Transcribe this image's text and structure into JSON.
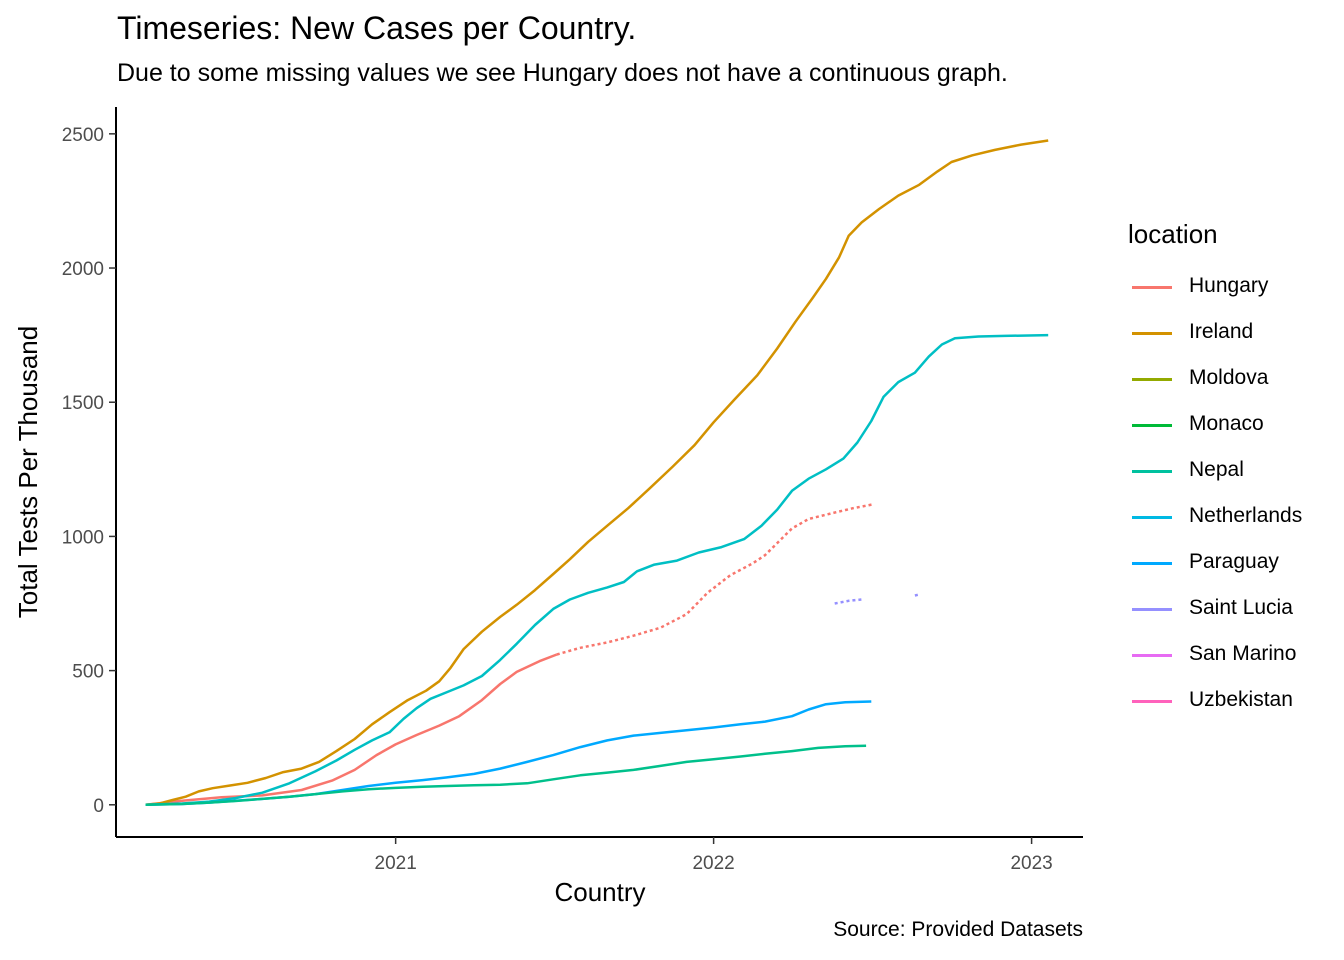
{
  "chart_data": {
    "type": "line",
    "title": "Timeseries: New Cases per Country.",
    "subtitle": "Due to some missing values we see Hungary does not have a continuous graph.",
    "caption": "Source: Provided Datasets",
    "xlabel": "Country",
    "ylabel": "Total Tests Per Thousand",
    "x_ticks": [
      "2021",
      "2022",
      "2023"
    ],
    "y_ticks": [
      0,
      500,
      1000,
      1500,
      2000,
      2500
    ],
    "xlim": [
      "2020-02-15",
      "2023-03-01"
    ],
    "ylim": [
      -120,
      2600
    ],
    "grid": false,
    "legend_title": "location",
    "legend_position": "right",
    "series": [
      {
        "name": "Hungary",
        "color": "#F8766D",
        "points": [
          [
            "2020-03-20",
            0
          ],
          [
            "2020-05-01",
            15
          ],
          [
            "2020-06-15",
            28
          ],
          [
            "2020-08-01",
            35
          ],
          [
            "2020-09-15",
            55
          ],
          [
            "2020-10-20",
            90
          ],
          [
            "2020-11-15",
            130
          ],
          [
            "2020-12-10",
            185
          ],
          [
            "2021-01-01",
            225
          ],
          [
            "2021-01-25",
            260
          ],
          [
            "2021-02-20",
            295
          ],
          [
            "2021-03-15",
            330
          ],
          [
            "2021-04-10",
            390
          ],
          [
            "2021-05-01",
            450
          ],
          [
            "2021-05-20",
            495
          ],
          [
            "2021-06-15",
            535
          ],
          [
            "2021-07-05",
            560
          ]
        ]
      },
      {
        "name": "Hungary",
        "color": "#F8766D",
        "dashed": true,
        "points": [
          [
            "2021-07-05",
            560
          ],
          [
            "2021-08-01",
            585
          ],
          [
            "2021-09-01",
            605
          ],
          [
            "2021-10-01",
            630
          ],
          [
            "2021-11-01",
            660
          ],
          [
            "2021-12-01",
            710
          ],
          [
            "2021-12-25",
            790
          ],
          [
            "2022-01-20",
            855
          ],
          [
            "2022-02-15",
            900
          ],
          [
            "2022-03-01",
            930
          ],
          [
            "2022-03-15",
            975
          ],
          [
            "2022-04-01",
            1030
          ],
          [
            "2022-04-20",
            1065
          ],
          [
            "2022-05-15",
            1085
          ],
          [
            "2022-06-10",
            1105
          ],
          [
            "2022-07-04",
            1120
          ]
        ]
      },
      {
        "name": "Ireland",
        "color": "#D39200",
        "points": [
          [
            "2020-03-20",
            0
          ],
          [
            "2020-04-05",
            5
          ],
          [
            "2020-04-20",
            18
          ],
          [
            "2020-05-05",
            30
          ],
          [
            "2020-05-20",
            50
          ],
          [
            "2020-06-05",
            62
          ],
          [
            "2020-06-25",
            72
          ],
          [
            "2020-07-15",
            82
          ],
          [
            "2020-08-05",
            100
          ],
          [
            "2020-08-25",
            122
          ],
          [
            "2020-09-15",
            135
          ],
          [
            "2020-10-05",
            160
          ],
          [
            "2020-10-25",
            200
          ],
          [
            "2020-11-15",
            245
          ],
          [
            "2020-12-05",
            300
          ],
          [
            "2020-12-25",
            345
          ],
          [
            "2021-01-15",
            390
          ],
          [
            "2021-02-05",
            425
          ],
          [
            "2021-02-20",
            460
          ],
          [
            "2021-03-05",
            510
          ],
          [
            "2021-03-20",
            580
          ],
          [
            "2021-04-10",
            645
          ],
          [
            "2021-05-01",
            700
          ],
          [
            "2021-05-20",
            745
          ],
          [
            "2021-06-10",
            800
          ],
          [
            "2021-07-01",
            860
          ],
          [
            "2021-07-20",
            915
          ],
          [
            "2021-08-10",
            980
          ],
          [
            "2021-09-01",
            1040
          ],
          [
            "2021-09-25",
            1105
          ],
          [
            "2021-10-20",
            1180
          ],
          [
            "2021-11-15",
            1260
          ],
          [
            "2021-12-10",
            1340
          ],
          [
            "2022-01-01",
            1425
          ],
          [
            "2022-01-25",
            1510
          ],
          [
            "2022-02-20",
            1600
          ],
          [
            "2022-03-15",
            1700
          ],
          [
            "2022-04-05",
            1800
          ],
          [
            "2022-04-25",
            1890
          ],
          [
            "2022-05-10",
            1960
          ],
          [
            "2022-05-25",
            2040
          ],
          [
            "2022-06-05",
            2120
          ],
          [
            "2022-06-20",
            2170
          ],
          [
            "2022-07-10",
            2220
          ],
          [
            "2022-08-01",
            2270
          ],
          [
            "2022-08-25",
            2310
          ],
          [
            "2022-09-15",
            2360
          ],
          [
            "2022-10-01",
            2395
          ],
          [
            "2022-10-25",
            2420
          ],
          [
            "2022-11-20",
            2440
          ],
          [
            "2022-12-20",
            2460
          ],
          [
            "2023-01-20",
            2475
          ]
        ]
      },
      {
        "name": "Netherlands",
        "color": "#00BFC4",
        "points": [
          [
            "2020-03-20",
            0
          ],
          [
            "2020-05-01",
            5
          ],
          [
            "2020-06-01",
            12
          ],
          [
            "2020-07-01",
            25
          ],
          [
            "2020-08-01",
            45
          ],
          [
            "2020-09-01",
            80
          ],
          [
            "2020-10-01",
            125
          ],
          [
            "2020-10-25",
            165
          ],
          [
            "2020-11-15",
            205
          ],
          [
            "2020-12-05",
            240
          ],
          [
            "2020-12-25",
            270
          ],
          [
            "2021-01-10",
            320
          ],
          [
            "2021-01-25",
            360
          ],
          [
            "2021-02-10",
            395
          ],
          [
            "2021-03-01",
            420
          ],
          [
            "2021-03-20",
            445
          ],
          [
            "2021-04-10",
            480
          ],
          [
            "2021-05-01",
            540
          ],
          [
            "2021-05-20",
            600
          ],
          [
            "2021-06-10",
            670
          ],
          [
            "2021-07-01",
            730
          ],
          [
            "2021-07-20",
            765
          ],
          [
            "2021-08-10",
            790
          ],
          [
            "2021-09-01",
            810
          ],
          [
            "2021-09-20",
            830
          ],
          [
            "2021-10-05",
            870
          ],
          [
            "2021-10-25",
            895
          ],
          [
            "2021-11-20",
            910
          ],
          [
            "2021-12-15",
            940
          ],
          [
            "2022-01-10",
            960
          ],
          [
            "2022-02-05",
            990
          ],
          [
            "2022-02-25",
            1040
          ],
          [
            "2022-03-15",
            1100
          ],
          [
            "2022-04-01",
            1170
          ],
          [
            "2022-04-20",
            1215
          ],
          [
            "2022-05-10",
            1250
          ],
          [
            "2022-05-30",
            1290
          ],
          [
            "2022-06-15",
            1350
          ],
          [
            "2022-07-01",
            1430
          ],
          [
            "2022-07-15",
            1520
          ],
          [
            "2022-08-01",
            1575
          ],
          [
            "2022-08-20",
            1610
          ],
          [
            "2022-09-05",
            1670
          ],
          [
            "2022-09-20",
            1715
          ],
          [
            "2022-10-05",
            1738
          ],
          [
            "2022-11-01",
            1745
          ],
          [
            "2022-12-01",
            1747
          ],
          [
            "2023-01-20",
            1750
          ]
        ]
      },
      {
        "name": "Paraguay",
        "color": "#00A9FF",
        "points": [
          [
            "2020-03-20",
            0
          ],
          [
            "2020-05-01",
            3
          ],
          [
            "2020-06-01",
            8
          ],
          [
            "2020-07-01",
            15
          ],
          [
            "2020-08-01",
            22
          ],
          [
            "2020-09-01",
            30
          ],
          [
            "2020-10-01",
            40
          ],
          [
            "2020-11-01",
            55
          ],
          [
            "2020-12-01",
            70
          ],
          [
            "2021-01-01",
            82
          ],
          [
            "2021-02-01",
            92
          ],
          [
            "2021-03-01",
            102
          ],
          [
            "2021-04-01",
            115
          ],
          [
            "2021-05-01",
            135
          ],
          [
            "2021-06-01",
            160
          ],
          [
            "2021-07-01",
            185
          ],
          [
            "2021-08-01",
            215
          ],
          [
            "2021-09-01",
            240
          ],
          [
            "2021-10-01",
            258
          ],
          [
            "2021-11-01",
            268
          ],
          [
            "2021-12-01",
            278
          ],
          [
            "2022-01-01",
            288
          ],
          [
            "2022-02-01",
            300
          ],
          [
            "2022-03-01",
            310
          ],
          [
            "2022-04-01",
            330
          ],
          [
            "2022-04-20",
            355
          ],
          [
            "2022-05-10",
            375
          ],
          [
            "2022-06-01",
            382
          ],
          [
            "2022-07-01",
            385
          ]
        ]
      },
      {
        "name": "Nepal",
        "color": "#00C08B",
        "points": [
          [
            "2020-03-20",
            0
          ],
          [
            "2020-05-01",
            3
          ],
          [
            "2020-06-01",
            8
          ],
          [
            "2020-07-01",
            14
          ],
          [
            "2020-08-01",
            22
          ],
          [
            "2020-09-01",
            30
          ],
          [
            "2020-10-01",
            40
          ],
          [
            "2020-11-01",
            50
          ],
          [
            "2020-12-01",
            58
          ],
          [
            "2021-01-01",
            63
          ],
          [
            "2021-02-01",
            67
          ],
          [
            "2021-03-01",
            70
          ],
          [
            "2021-04-01",
            73
          ],
          [
            "2021-05-01",
            75
          ],
          [
            "2021-06-01",
            80
          ],
          [
            "2021-07-01",
            95
          ],
          [
            "2021-08-01",
            110
          ],
          [
            "2021-09-01",
            120
          ],
          [
            "2021-10-01",
            130
          ],
          [
            "2021-11-01",
            145
          ],
          [
            "2021-12-01",
            160
          ],
          [
            "2022-01-01",
            170
          ],
          [
            "2022-02-01",
            180
          ],
          [
            "2022-03-01",
            190
          ],
          [
            "2022-04-01",
            200
          ],
          [
            "2022-05-01",
            212
          ],
          [
            "2022-06-01",
            218
          ],
          [
            "2022-06-25",
            220
          ]
        ]
      },
      {
        "name": "Saint Lucia",
        "color": "#9590FF",
        "dashed": true,
        "points": [
          [
            "2022-05-20",
            750
          ],
          [
            "2022-06-05",
            760
          ],
          [
            "2022-06-20",
            765
          ]
        ]
      },
      {
        "name": "Saint Lucia",
        "color": "#9590FF",
        "dashed": true,
        "points": [
          [
            "2022-08-20",
            780
          ],
          [
            "2022-08-24",
            783
          ]
        ]
      }
    ],
    "legend": [
      {
        "name": "Hungary",
        "color": "#F8766D"
      },
      {
        "name": "Ireland",
        "color": "#D39200"
      },
      {
        "name": "Moldova",
        "color": "#93AA00"
      },
      {
        "name": "Monaco",
        "color": "#00BA38"
      },
      {
        "name": "Nepal",
        "color": "#00C19F"
      },
      {
        "name": "Netherlands",
        "color": "#00B9E3"
      },
      {
        "name": "Paraguay",
        "color": "#00A9FF"
      },
      {
        "name": "Saint Lucia",
        "color": "#9590FF"
      },
      {
        "name": "San Marino",
        "color": "#E76BF3"
      },
      {
        "name": "Uzbekistan",
        "color": "#FF62BC"
      }
    ]
  }
}
